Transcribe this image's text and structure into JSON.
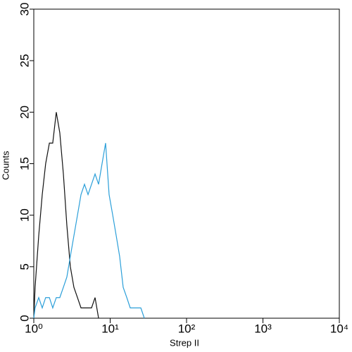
{
  "chart_data": {
    "type": "line",
    "x_label": "Strep II",
    "y_label": "Counts",
    "xscale": "log",
    "xlim": [
      1,
      10000
    ],
    "xticks": [
      {
        "value": 1,
        "label": "10⁰"
      },
      {
        "value": 10,
        "label": "10¹"
      },
      {
        "value": 100,
        "label": "10²"
      },
      {
        "value": 1000,
        "label": "10³"
      },
      {
        "value": 10000,
        "label": "10⁴"
      }
    ],
    "ylim": [
      0,
      30
    ],
    "yticks": [
      0,
      5,
      10,
      15,
      20,
      25,
      30
    ],
    "series": [
      {
        "color": "#111111",
        "x": [
          1,
          1.04,
          1.16,
          1.29,
          1.43,
          1.6,
          1.77,
          1.97,
          2.19,
          2.44,
          2.71,
          3.01,
          3.35,
          3.73,
          4.15,
          4.61,
          5.13,
          5.7,
          6.34,
          7.05
        ],
        "values": [
          0,
          3,
          8,
          12,
          15,
          17,
          17,
          20,
          18,
          14,
          9,
          5,
          3,
          2,
          1,
          1,
          1,
          1,
          2,
          0
        ]
      },
      {
        "color": "#2b9fd9",
        "x": [
          1,
          1.04,
          1.16,
          1.29,
          1.43,
          1.6,
          1.77,
          1.97,
          2.19,
          2.44,
          2.71,
          3.01,
          3.35,
          3.73,
          4.15,
          4.61,
          5.13,
          5.7,
          6.34,
          7.05,
          7.83,
          8.71,
          9.68,
          10.8,
          12,
          13.3,
          14.8,
          16.5,
          18.3,
          20.4,
          22.6,
          25.2,
          28
        ],
        "values": [
          0,
          1,
          2,
          1,
          2,
          2,
          1,
          2,
          2,
          3,
          4,
          6,
          8,
          10,
          12,
          13,
          12,
          13,
          14,
          13,
          15,
          17,
          12,
          10,
          8,
          6,
          3,
          2,
          1,
          1,
          1,
          1,
          0
        ]
      }
    ]
  }
}
